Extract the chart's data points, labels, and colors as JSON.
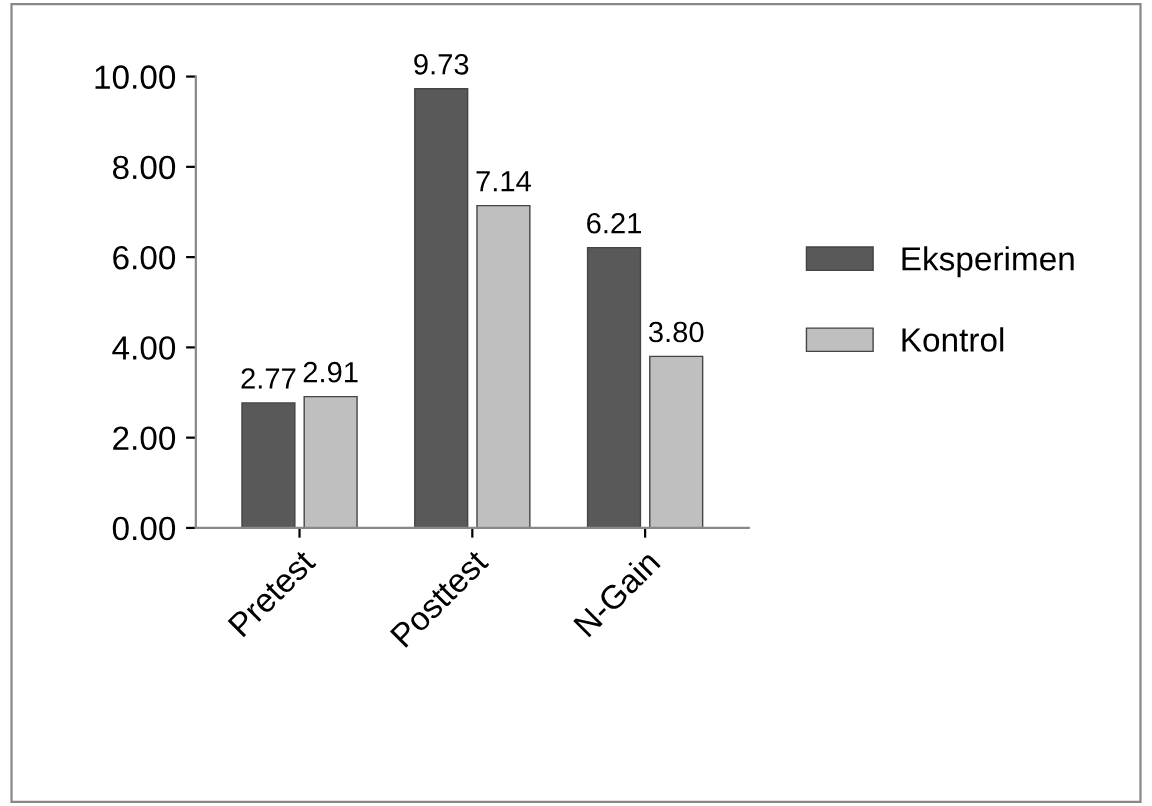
{
  "chart_data": {
    "type": "bar",
    "categories": [
      "Pretest",
      "Posttest",
      "N-Gain"
    ],
    "series": [
      {
        "name": "Eksperimen",
        "color": "#595959",
        "values": [
          2.77,
          9.73,
          6.21
        ],
        "value_labels": [
          "2.77",
          "9.73",
          "6.21"
        ]
      },
      {
        "name": "Kontrol",
        "color": "#bfbfbf",
        "values": [
          2.91,
          7.14,
          3.8
        ],
        "value_labels": [
          "2.91",
          "7.14",
          "3.80"
        ]
      }
    ],
    "ylim": [
      0,
      10
    ],
    "yticks": [
      {
        "value": 0,
        "label": "0.00"
      },
      {
        "value": 2,
        "label": "2.00"
      },
      {
        "value": 4,
        "label": "4.00"
      },
      {
        "value": 6,
        "label": "6.00"
      },
      {
        "value": 8,
        "label": "8.00"
      },
      {
        "value": 10,
        "label": "10.00"
      }
    ],
    "legend": "right",
    "grid": false
  }
}
